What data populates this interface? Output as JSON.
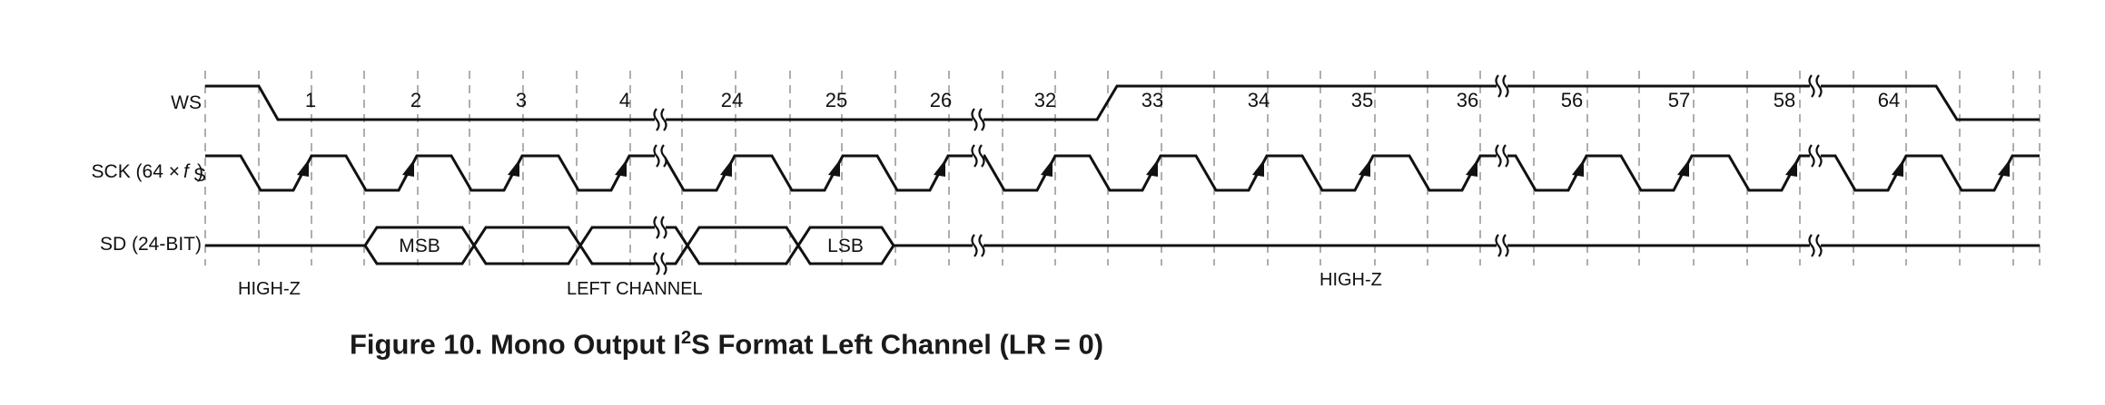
{
  "signals": {
    "ws": "WS",
    "sck": "SCK (64 ×",
    "sck_fs": "f",
    "sck_fs_sub": "S",
    "sck_close": ")",
    "sd": "SD (24-BIT)"
  },
  "bit_numbers": [
    "1",
    "2",
    "3",
    "4",
    "24",
    "25",
    "26",
    "32",
    "33",
    "34",
    "35",
    "36",
    "56",
    "57",
    "58",
    "64"
  ],
  "data_boxes": [
    "MSB",
    "LSB"
  ],
  "notes": {
    "high_z_left": "HIGH-Z",
    "left_channel": "LEFT CHANNEL",
    "high_z_right": "HIGH-Z"
  },
  "caption": {
    "prefix": "Figure 10. Mono Output I",
    "superscript": "2",
    "suffix": "S Format Left Channel (LR = 0)"
  },
  "colors": {
    "line": "#111111",
    "grid": "#9a9a9a"
  }
}
